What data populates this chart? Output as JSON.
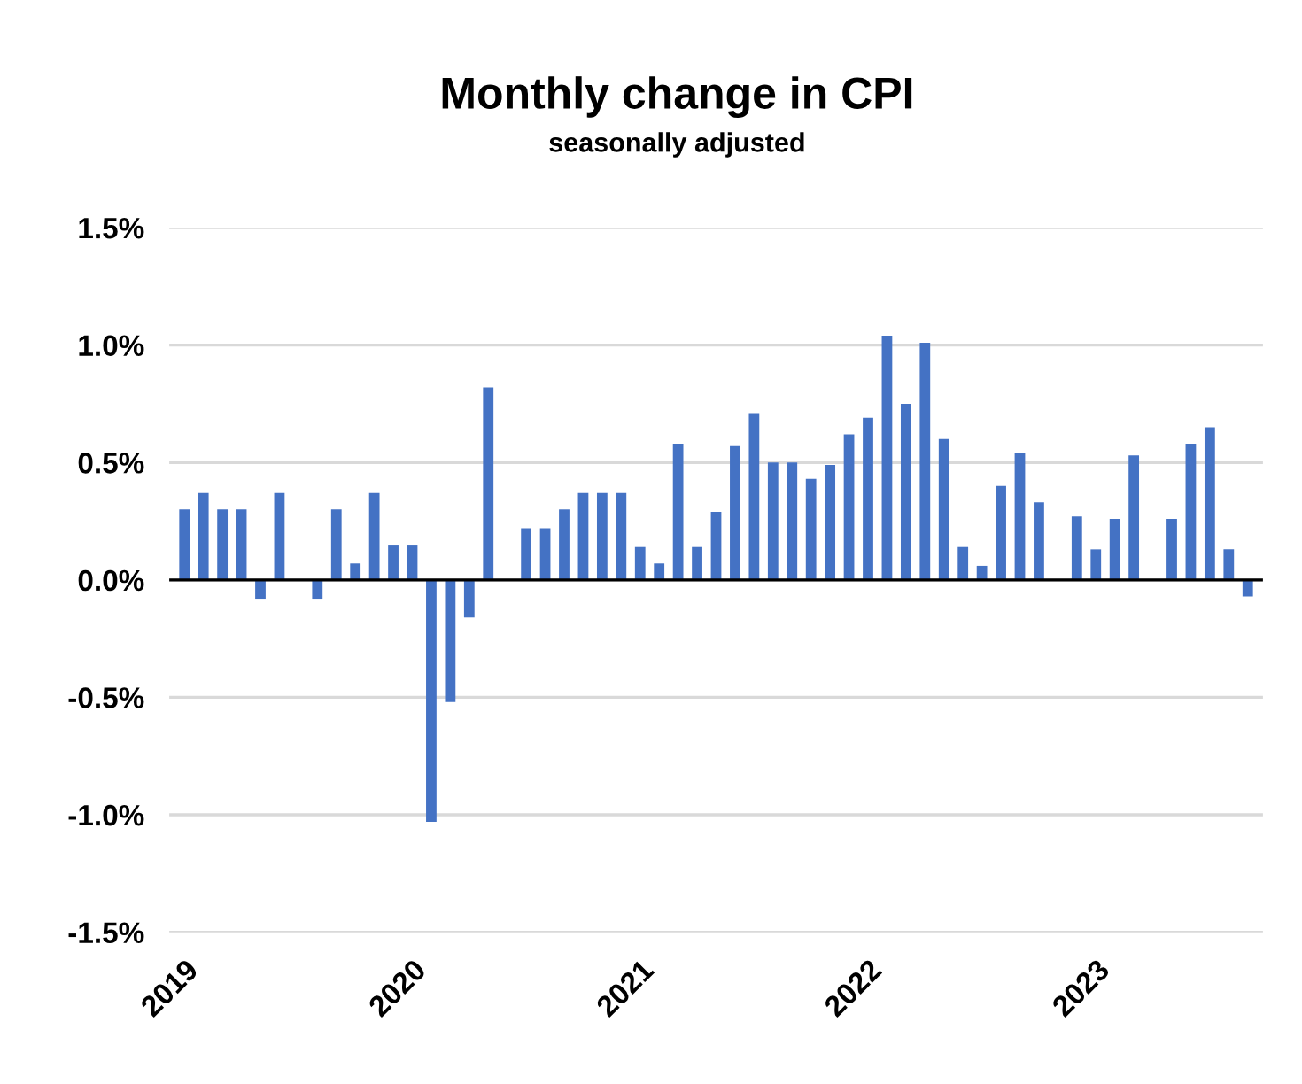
{
  "chart_data": {
    "type": "bar",
    "title": "Monthly change in CPI",
    "subtitle": "seasonally adjusted",
    "categories": [
      "2019",
      null,
      null,
      null,
      null,
      null,
      null,
      null,
      null,
      null,
      null,
      null,
      "2020",
      null,
      null,
      null,
      null,
      null,
      null,
      null,
      null,
      null,
      null,
      null,
      "2021",
      null,
      null,
      null,
      null,
      null,
      null,
      null,
      null,
      null,
      null,
      null,
      "2022",
      null,
      null,
      null,
      null,
      null,
      null,
      null,
      null,
      null,
      null,
      null,
      "2023",
      null,
      null,
      null,
      null,
      null,
      null,
      null,
      null
    ],
    "values": [
      0.3,
      0.37,
      0.3,
      0.3,
      -0.08,
      0.37,
      0,
      -0.08,
      0.3,
      0.07,
      0.37,
      0.15,
      0.15,
      -1.03,
      -0.52,
      -0.16,
      0.82,
      0,
      0.22,
      0.22,
      0.3,
      0.37,
      0.37,
      0.37,
      0.14,
      0.07,
      0.58,
      0.14,
      0.29,
      0.57,
      0.71,
      0.5,
      0.5,
      0.43,
      0.49,
      0.62,
      0.69,
      1.04,
      0.75,
      1.01,
      0.6,
      0.14,
      0.06,
      0.4,
      0.54,
      0.33,
      0,
      0.27,
      0.13,
      0.26,
      0.53,
      0,
      0.26,
      0.58,
      0.65,
      0.13,
      -0.07
    ],
    "color": "#4472c4",
    "ylim": [
      -1.5,
      1.5
    ],
    "yticks": [
      {
        "value": -1.5,
        "label": "-1.5%"
      },
      {
        "value": -1.0,
        "label": "-1.0%"
      },
      {
        "value": -0.5,
        "label": "-0.5%"
      },
      {
        "value": 0,
        "label": "0.0%"
      },
      {
        "value": 0.5,
        "label": "0.5%"
      },
      {
        "value": 1.0,
        "label": "1.0%"
      },
      {
        "value": 1.5,
        "label": "1.5%"
      }
    ],
    "grid": "y",
    "ref_lines": [
      {
        "axis": "y",
        "value": 0,
        "color": "#000000"
      }
    ]
  }
}
